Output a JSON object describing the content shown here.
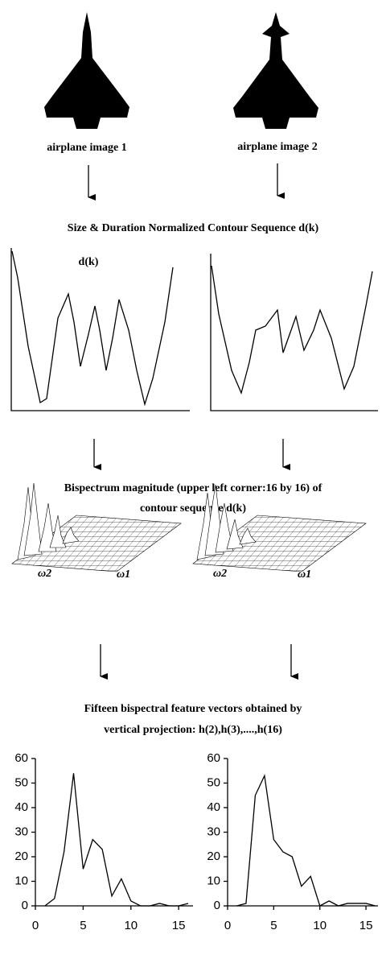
{
  "labels": {
    "image1": "airplane image 1",
    "image2": "airplane image 2",
    "contour_heading": "Size & Duration Normalized Contour Sequence d(k)",
    "contour_axis": "d(k)",
    "bispectrum_heading_1": "Bispectrum magnitude (upper left corner:16 by 16) of",
    "bispectrum_heading_2": "contour sequence d(k)",
    "omega2": "ω2",
    "omega1": "ω1",
    "feature_heading_1": "Fifteen bispectral feature vectors obtained by",
    "feature_heading_2": "vertical projection: h(2),h(3),....,h(16)"
  },
  "chart_data": [
    {
      "type": "line",
      "color": "#000000",
      "x": [
        1,
        2,
        3,
        4,
        5,
        6,
        7,
        8,
        9,
        10,
        11,
        12,
        13,
        14,
        15,
        16
      ],
      "values": [
        0,
        3,
        22,
        54,
        15,
        27,
        23,
        4,
        11,
        2,
        0,
        0,
        1,
        0,
        0,
        1
      ],
      "xlim": [
        0,
        16.5
      ],
      "ylim": [
        0,
        60
      ],
      "xticks": [
        0,
        5,
        10,
        15
      ],
      "yticks": [
        0,
        10,
        20,
        30,
        40,
        50,
        60
      ]
    },
    {
      "type": "line",
      "color": "#000000",
      "x": [
        1,
        2,
        3,
        4,
        5,
        6,
        7,
        8,
        9,
        10,
        11,
        12,
        13,
        14,
        15,
        16
      ],
      "values": [
        0,
        1,
        45,
        53,
        27,
        22,
        20,
        8,
        12,
        0,
        2,
        0,
        1,
        1,
        1,
        0
      ],
      "xlim": [
        0,
        16.3
      ],
      "ylim": [
        0,
        60
      ],
      "xticks": [
        0,
        5,
        10,
        15
      ],
      "yticks": [
        0,
        10,
        20,
        30,
        40,
        50,
        60
      ]
    }
  ]
}
